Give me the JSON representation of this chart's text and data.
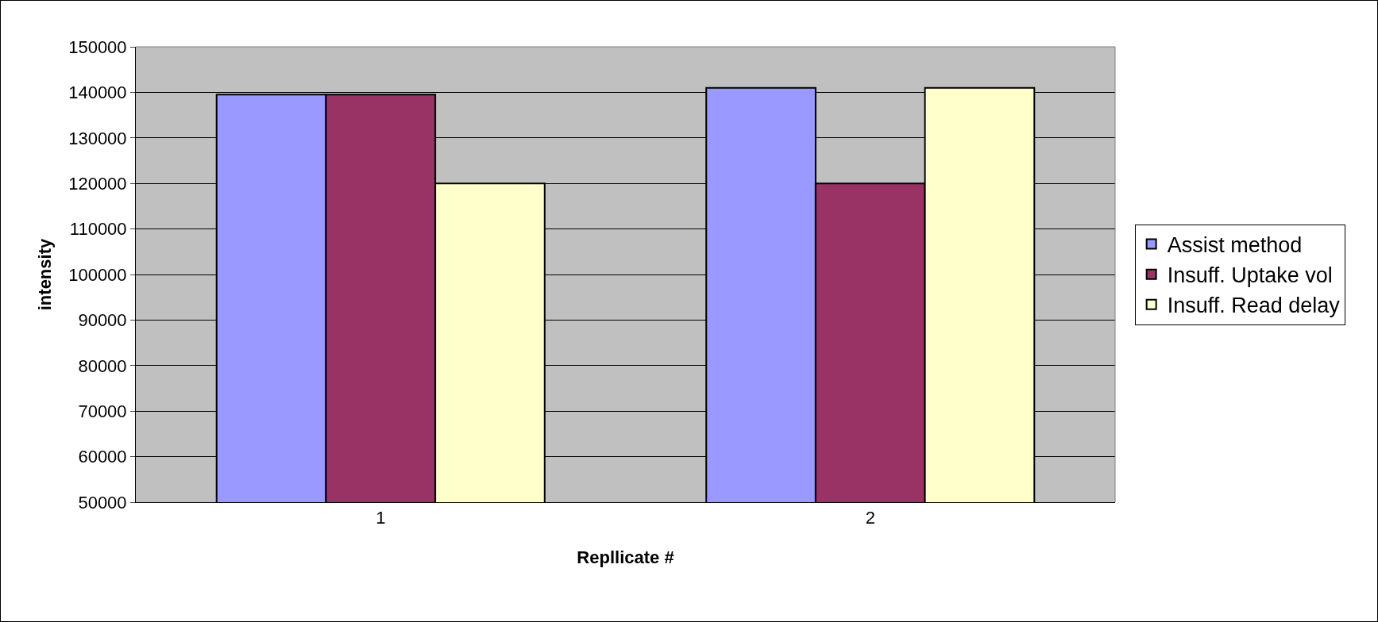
{
  "chart_data": {
    "type": "bar",
    "xlabel": "Repllicate #",
    "ylabel": "intensity",
    "categories": [
      "1",
      "2"
    ],
    "series": [
      {
        "name": "Assist method",
        "color": "#9999ff",
        "values": [
          139500,
          141000
        ]
      },
      {
        "name": "Insuff. Uptake vol",
        "color": "#993366",
        "values": [
          139500,
          120000
        ]
      },
      {
        "name": "Insuff. Read delay",
        "color": "#ffffcc",
        "values": [
          120000,
          141000
        ]
      }
    ],
    "ylim": [
      50000,
      150000
    ],
    "yticks": [
      50000,
      60000,
      70000,
      80000,
      90000,
      100000,
      110000,
      120000,
      130000,
      140000,
      150000
    ],
    "grid": "y",
    "legend": "right"
  }
}
